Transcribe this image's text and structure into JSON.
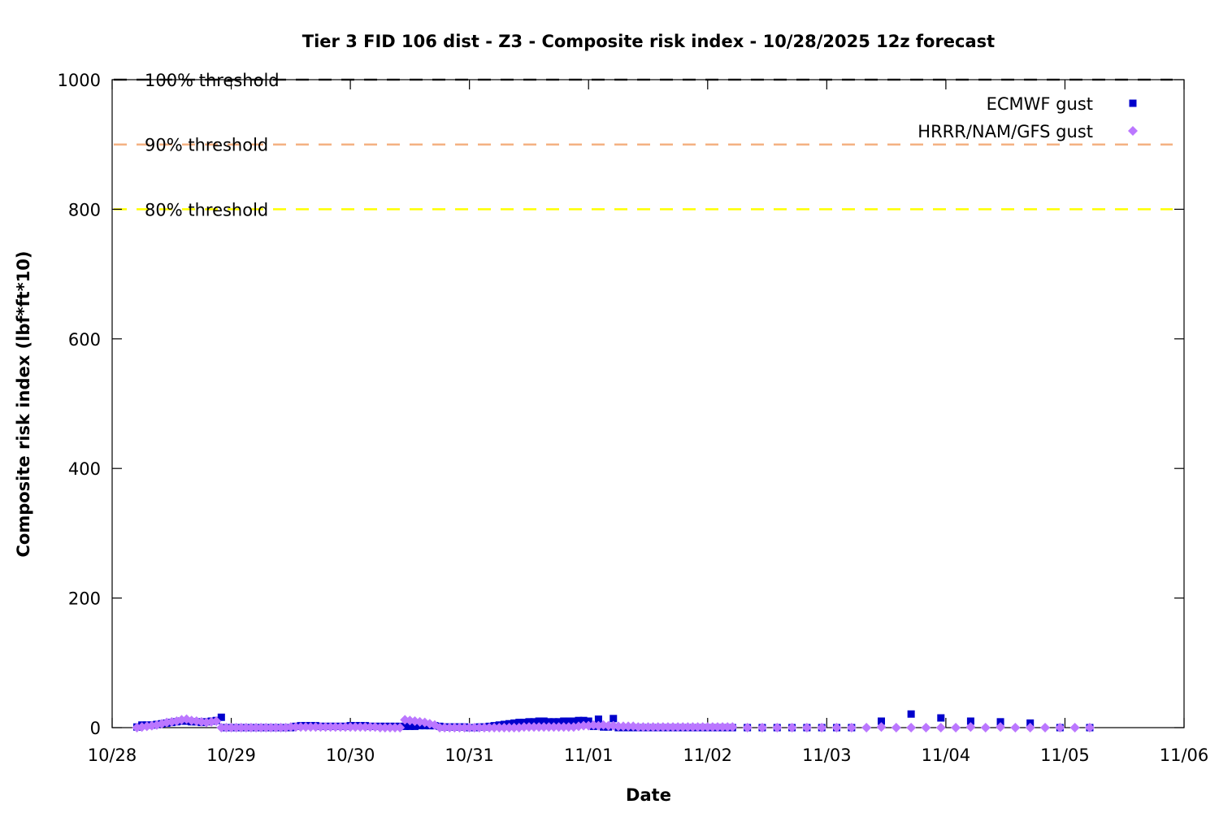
{
  "chart_data": {
    "type": "scatter",
    "title": "Tier 3 FID 106 dist - Z3 - Composite risk index - 10/28/2025 12z forecast",
    "xlabel": "Date",
    "ylabel": "Composite risk index (lbf*ft*10)",
    "xlim": [
      "2025-10-28 00:00",
      "2025-11-06 00:00"
    ],
    "ylim": [
      0,
      1000
    ],
    "x_tick_labels": [
      "10/28",
      "10/29",
      "10/30",
      "10/31",
      "11/01",
      "11/02",
      "11/03",
      "11/04",
      "11/05",
      "11/06"
    ],
    "y_tick_labels": [
      "0",
      "200",
      "400",
      "600",
      "800",
      "1000"
    ],
    "y_ticks": [
      0,
      200,
      400,
      600,
      800,
      1000
    ],
    "grid": false,
    "legend_position": "top-right",
    "thresholds": [
      {
        "label": "100% threshold",
        "value": 1000,
        "color": "#333333"
      },
      {
        "label": "90% threshold",
        "value": 900,
        "color": "#f4b183"
      },
      {
        "label": "80% threshold",
        "value": 800,
        "color": "#ffff00"
      }
    ],
    "series": [
      {
        "name": "ECMWF gust",
        "color": "#0000cc",
        "marker": "square",
        "hourly_from": "2025-10-28 05:00",
        "hourly_values": [
          1,
          4,
          4,
          4,
          5,
          6,
          7,
          8,
          9,
          10,
          10,
          9,
          9,
          8,
          9,
          10,
          11,
          16,
          0,
          0,
          0,
          0,
          0,
          0,
          0,
          0,
          0,
          0,
          0,
          0,
          0,
          0,
          2,
          3,
          3,
          3,
          3,
          2,
          2,
          2,
          2,
          2,
          2,
          3,
          3,
          3,
          3,
          2,
          2,
          2,
          2,
          2,
          2,
          2,
          2,
          2,
          2,
          3,
          3,
          3,
          3,
          2,
          1,
          1,
          1,
          1,
          1,
          0,
          0,
          1,
          1,
          2,
          3,
          4,
          5,
          6,
          7,
          8,
          8,
          9,
          9,
          10,
          10,
          9,
          9,
          9,
          10,
          10,
          10,
          11,
          11,
          10,
          2,
          13,
          1,
          1,
          14,
          0,
          0,
          0,
          0,
          0,
          0,
          0,
          0,
          0,
          0,
          0,
          0,
          0,
          0,
          0,
          0,
          0,
          0,
          0,
          0,
          0,
          0,
          0,
          0
        ],
        "points": [
          [
            "2025-11-02 08:00",
            0
          ],
          [
            "2025-11-02 11:00",
            0
          ],
          [
            "2025-11-02 14:00",
            0
          ],
          [
            "2025-11-02 17:00",
            0
          ],
          [
            "2025-11-02 20:00",
            0
          ],
          [
            "2025-11-02 23:00",
            0
          ],
          [
            "2025-11-03 02:00",
            0
          ],
          [
            "2025-11-03 05:00",
            0
          ],
          [
            "2025-11-03 11:00",
            10
          ],
          [
            "2025-11-03 17:00",
            21
          ],
          [
            "2025-11-03 23:00",
            15
          ],
          [
            "2025-11-04 05:00",
            10
          ],
          [
            "2025-11-04 11:00",
            9
          ],
          [
            "2025-11-04 17:00",
            7
          ],
          [
            "2025-11-04 23:00",
            0
          ],
          [
            "2025-11-05 05:00",
            0
          ]
        ]
      },
      {
        "name": "HRRR/NAM/GFS gust",
        "color": "#bb77ff",
        "marker": "diamond",
        "hourly_from": "2025-10-28 05:00",
        "hourly_values": [
          0,
          1,
          2,
          3,
          4,
          6,
          8,
          9,
          10,
          12,
          13,
          11,
          10,
          9,
          8,
          9,
          10,
          0,
          0,
          0,
          0,
          0,
          0,
          0,
          0,
          0,
          0,
          0,
          0,
          0,
          0,
          1,
          1,
          1,
          1,
          1,
          1,
          1,
          1,
          1,
          1,
          1,
          1,
          1,
          1,
          1,
          1,
          1,
          1,
          0,
          0,
          0,
          0,
          0,
          12,
          11,
          10,
          9,
          8,
          6,
          4,
          0,
          0,
          0,
          0,
          0,
          0,
          0,
          0,
          0,
          0,
          0,
          0,
          0,
          0,
          0,
          0,
          0,
          1,
          1,
          1,
          1,
          1,
          1,
          1,
          1,
          1,
          1,
          1,
          2,
          3,
          3,
          4,
          3,
          4,
          3,
          3,
          2,
          2,
          2,
          2,
          1,
          1,
          1,
          1,
          1,
          1,
          1,
          1,
          1,
          1,
          1,
          1,
          1,
          1,
          1,
          1,
          1,
          1,
          1,
          1
        ],
        "points": [
          [
            "2025-11-02 08:00",
            0
          ],
          [
            "2025-11-02 11:00",
            0
          ],
          [
            "2025-11-02 14:00",
            0
          ],
          [
            "2025-11-02 17:00",
            0
          ],
          [
            "2025-11-02 20:00",
            0
          ],
          [
            "2025-11-02 23:00",
            0
          ],
          [
            "2025-11-03 02:00",
            0
          ],
          [
            "2025-11-03 05:00",
            0
          ],
          [
            "2025-11-03 08:00",
            0
          ],
          [
            "2025-11-03 11:00",
            1
          ],
          [
            "2025-11-03 14:00",
            0
          ],
          [
            "2025-11-03 17:00",
            0
          ],
          [
            "2025-11-03 20:00",
            0
          ],
          [
            "2025-11-03 23:00",
            0
          ],
          [
            "2025-11-04 02:00",
            0
          ],
          [
            "2025-11-04 05:00",
            1
          ],
          [
            "2025-11-04 08:00",
            0
          ],
          [
            "2025-11-04 11:00",
            1
          ],
          [
            "2025-11-04 14:00",
            0
          ],
          [
            "2025-11-04 17:00",
            0
          ],
          [
            "2025-11-04 20:00",
            0
          ],
          [
            "2025-11-04 23:00",
            0
          ],
          [
            "2025-11-05 02:00",
            0
          ],
          [
            "2025-11-05 05:00",
            0
          ]
        ]
      }
    ]
  }
}
